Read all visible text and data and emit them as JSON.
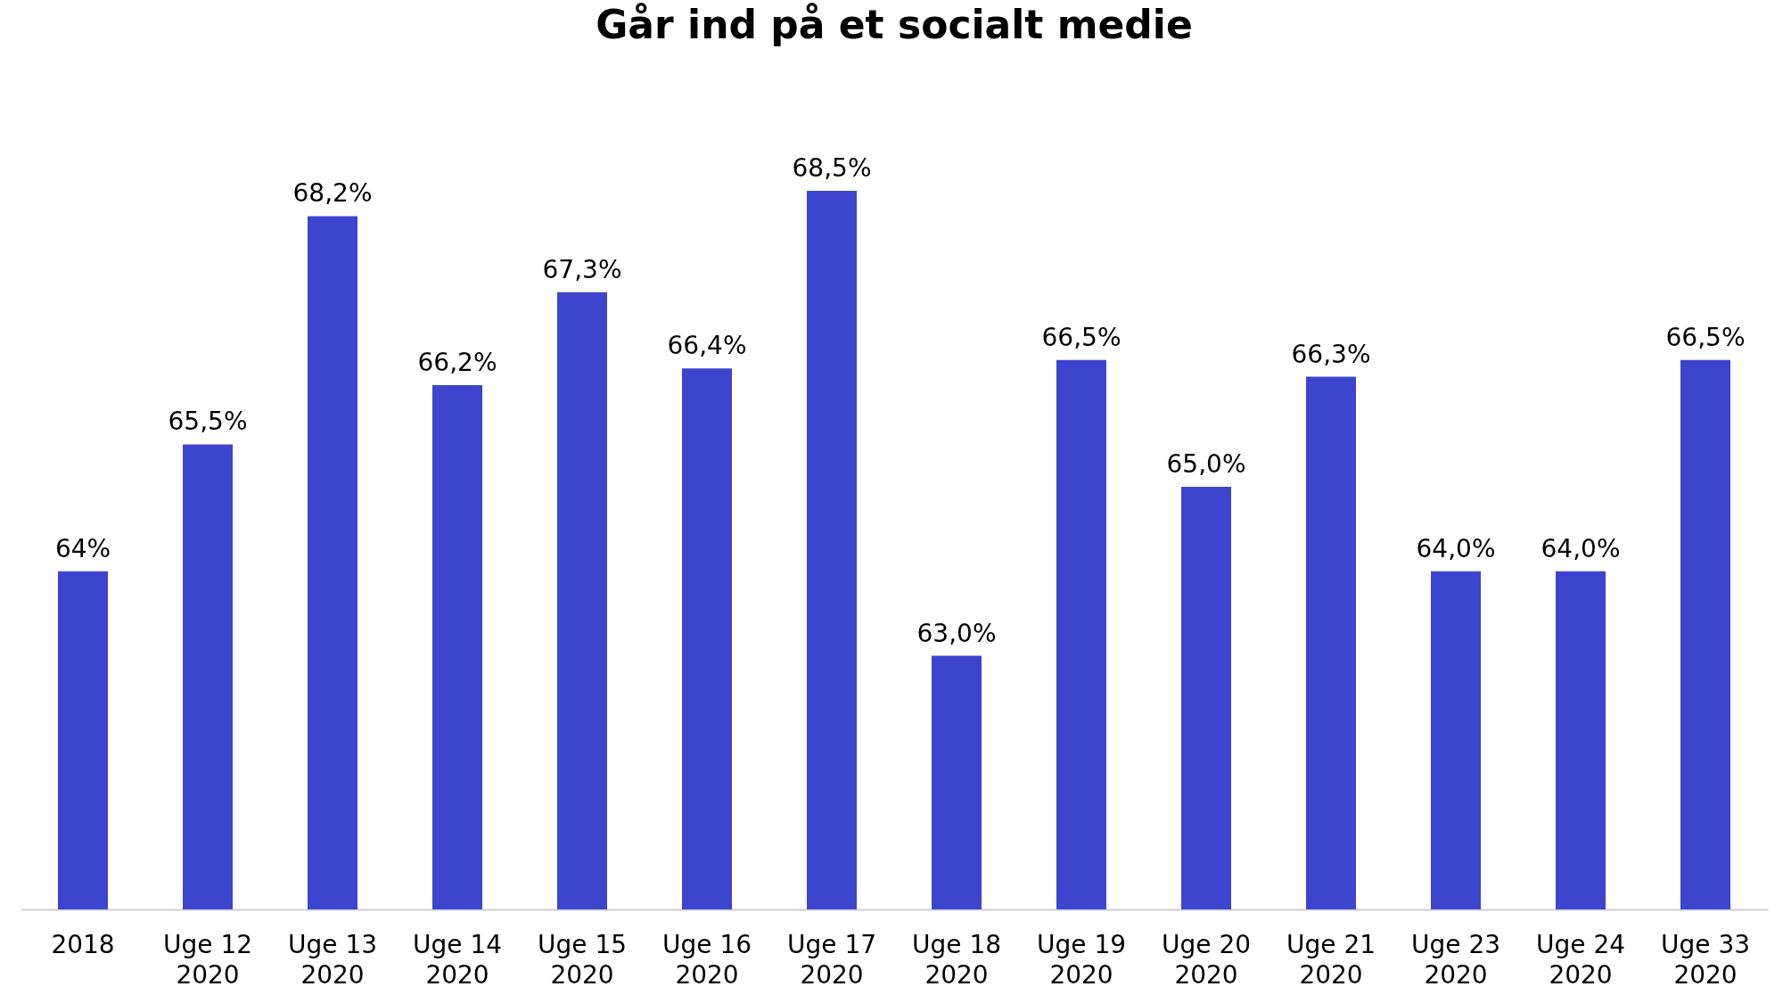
{
  "chart_data": {
    "type": "bar",
    "title": "Går ind på et socialt medie",
    "categories": [
      "2018",
      "Uge 12\n2020",
      "Uge 13\n2020",
      "Uge 14\n2020",
      "Uge 15\n2020",
      "Uge 16\n2020",
      "Uge 17\n2020",
      "Uge 18\n2020",
      "Uge 19\n2020",
      "Uge 20\n2020",
      "Uge 21\n2020",
      "Uge 23\n2020",
      "Uge 24\n2020",
      "Uge 33\n2020"
    ],
    "values": [
      64,
      65.5,
      68.2,
      66.2,
      67.3,
      66.4,
      68.5,
      63.0,
      66.5,
      65.0,
      66.3,
      64.0,
      64.0,
      66.5
    ],
    "value_labels": [
      "64%",
      "65,5%",
      "68,2%",
      "66,2%",
      "67,3%",
      "66,4%",
      "68,5%",
      "63,0%",
      "66,5%",
      "65,0%",
      "66,3%",
      "64,0%",
      "64,0%",
      "66,5%"
    ],
    "color": "#3d45cf",
    "ylim": [
      60,
      68.5
    ],
    "tick_labels": "x"
  }
}
